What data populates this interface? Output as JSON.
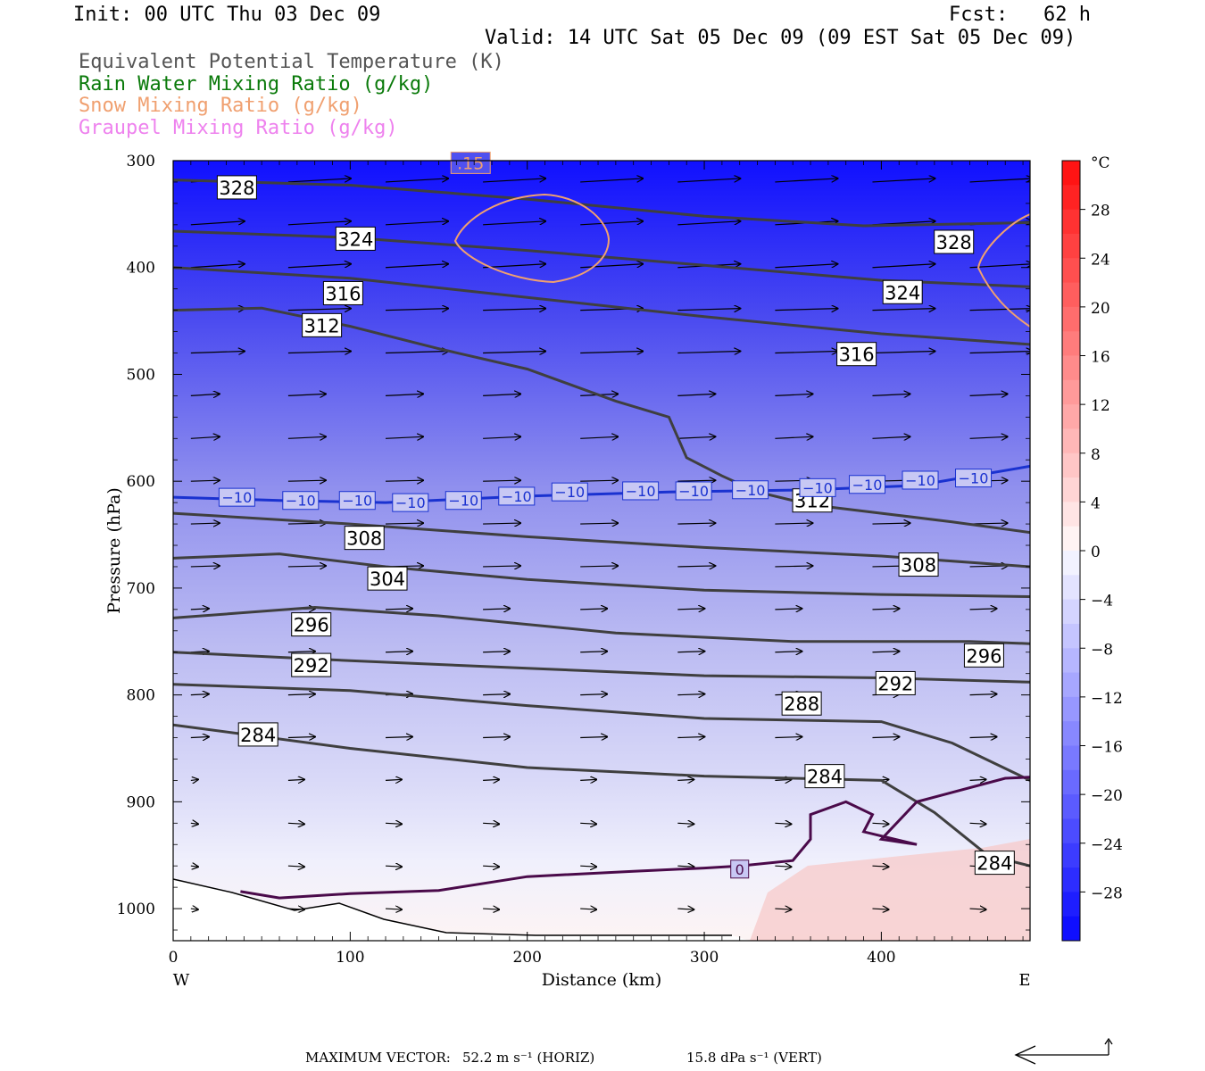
{
  "header": {
    "init": "Init: 00 UTC Thu 03 Dec 09",
    "fcst": "Fcst:   62 h",
    "valid": "Valid: 14 UTC Sat 05 Dec 09 (09 EST Sat 05 Dec 09)",
    "fields": [
      {
        "label": "Equivalent Potential Temperature (K)",
        "color": "#555555"
      },
      {
        "label": "Rain Water Mixing Ratio (g/kg)",
        "color": "#0a7a0a"
      },
      {
        "label": "Snow Mixing Ratio (g/kg)",
        "color": "#f0a070"
      },
      {
        "label": "Graupel Mixing Ratio (g/kg)",
        "color": "#ee82ee"
      }
    ]
  },
  "chart_data": {
    "type": "cross-section",
    "xlabel": "Distance (km)",
    "ylabel": "Pressure (hPa)",
    "x_ticks": [
      0,
      100,
      200,
      300,
      400
    ],
    "x_range": [
      0,
      484
    ],
    "y_ticks": [
      300,
      400,
      500,
      600,
      700,
      800,
      900,
      1000
    ],
    "y_range": [
      300,
      1030
    ],
    "x_end_labels": {
      "left": "W",
      "right": "E"
    },
    "colorbar": {
      "unit": "°C",
      "ticks": [
        "28",
        "24",
        "20",
        "16",
        "12",
        "8",
        "4",
        "0",
        "−4",
        "−8",
        "−12",
        "−16",
        "−20",
        "−24",
        "−28"
      ],
      "range": [
        -32,
        32
      ]
    },
    "theta_e_contours": [
      {
        "label": "328",
        "points": [
          [
            0,
            318
          ],
          [
            100,
            323
          ],
          [
            200,
            336
          ],
          [
            300,
            352
          ],
          [
            390,
            361
          ],
          [
            484,
            358
          ]
        ],
        "label_positions": [
          [
            36,
            325
          ],
          [
            441,
            376
          ]
        ]
      },
      {
        "label": "324",
        "points": [
          [
            0,
            366
          ],
          [
            100,
            372
          ],
          [
            200,
            384
          ],
          [
            300,
            398
          ],
          [
            400,
            412
          ],
          [
            484,
            418
          ]
        ],
        "label_positions": [
          [
            103,
            373
          ],
          [
            412,
            423
          ]
        ]
      },
      {
        "label": "316",
        "points": [
          [
            0,
            400
          ],
          [
            100,
            410
          ],
          [
            200,
            428
          ],
          [
            300,
            446
          ],
          [
            400,
            462
          ],
          [
            484,
            472
          ]
        ],
        "label_positions": [
          [
            96,
            424
          ],
          [
            386,
            481
          ]
        ]
      },
      {
        "label": "312",
        "points": [
          [
            0,
            440
          ],
          [
            50,
            438
          ],
          [
            100,
            455
          ],
          [
            150,
            476
          ],
          [
            200,
            495
          ],
          [
            250,
            525
          ],
          [
            280,
            540
          ],
          [
            290,
            578
          ],
          [
            310,
            595
          ],
          [
            330,
            610
          ],
          [
            360,
            622
          ],
          [
            400,
            630
          ],
          [
            440,
            638
          ],
          [
            484,
            648
          ]
        ],
        "label_positions": [
          [
            84,
            454
          ],
          [
            361,
            618
          ]
        ]
      },
      {
        "label": "308",
        "points": [
          [
            0,
            630
          ],
          [
            100,
            640
          ],
          [
            200,
            652
          ],
          [
            300,
            662
          ],
          [
            400,
            670
          ],
          [
            484,
            680
          ]
        ],
        "label_positions": [
          [
            108,
            653
          ],
          [
            421,
            678
          ]
        ]
      },
      {
        "label": "304",
        "points": [
          [
            0,
            672
          ],
          [
            60,
            668
          ],
          [
            120,
            680
          ],
          [
            200,
            692
          ],
          [
            300,
            702
          ],
          [
            400,
            706
          ],
          [
            484,
            708
          ]
        ],
        "label_positions": [
          [
            121,
            691
          ]
        ]
      },
      {
        "label": "296",
        "points": [
          [
            0,
            728
          ],
          [
            80,
            718
          ],
          [
            150,
            726
          ],
          [
            250,
            742
          ],
          [
            350,
            750
          ],
          [
            450,
            750
          ],
          [
            484,
            752
          ]
        ],
        "label_positions": [
          [
            78,
            734
          ],
          [
            458,
            763
          ]
        ]
      },
      {
        "label": "292",
        "points": [
          [
            0,
            760
          ],
          [
            100,
            768
          ],
          [
            200,
            775
          ],
          [
            300,
            782
          ],
          [
            400,
            784
          ],
          [
            484,
            788
          ]
        ],
        "label_positions": [
          [
            78,
            772
          ],
          [
            408,
            789
          ]
        ]
      },
      {
        "label": "288",
        "points": [
          [
            0,
            790
          ],
          [
            100,
            796
          ],
          [
            200,
            810
          ],
          [
            300,
            822
          ],
          [
            400,
            825
          ],
          [
            440,
            845
          ],
          [
            484,
            880
          ]
        ],
        "label_positions": [
          [
            355,
            808
          ]
        ]
      },
      {
        "label": "284",
        "points": [
          [
            0,
            828
          ],
          [
            100,
            850
          ],
          [
            200,
            868
          ],
          [
            300,
            876
          ],
          [
            400,
            880
          ],
          [
            430,
            910
          ],
          [
            460,
            950
          ],
          [
            484,
            960
          ]
        ],
        "label_positions": [
          [
            48,
            837
          ],
          [
            368,
            876
          ],
          [
            464,
            957
          ]
        ]
      }
    ],
    "temperature_contours": [
      {
        "label": "−10",
        "value_c": -10,
        "points": [
          [
            0,
            615
          ],
          [
            60,
            618
          ],
          [
            120,
            620
          ],
          [
            200,
            614
          ],
          [
            280,
            610
          ],
          [
            360,
            608
          ],
          [
            420,
            604
          ],
          [
            484,
            586
          ]
        ],
        "label_positions": [
          [
            36,
            615
          ],
          [
            72,
            618
          ],
          [
            104,
            618
          ],
          [
            134,
            620
          ],
          [
            164,
            618
          ],
          [
            194,
            614
          ],
          [
            224,
            610
          ],
          [
            264,
            609
          ],
          [
            294,
            609
          ],
          [
            326,
            608
          ],
          [
            364,
            606
          ],
          [
            392,
            603
          ],
          [
            422,
            599
          ],
          [
            452,
            597
          ]
        ]
      },
      {
        "label": "0",
        "value_c": 0,
        "points": [
          [
            38,
            984
          ],
          [
            60,
            990
          ],
          [
            100,
            986
          ],
          [
            150,
            983
          ],
          [
            200,
            970
          ],
          [
            260,
            965
          ],
          [
            300,
            962
          ],
          [
            320,
            960
          ],
          [
            350,
            955
          ],
          [
            360,
            935
          ],
          [
            360,
            912
          ],
          [
            380,
            900
          ],
          [
            395,
            912
          ],
          [
            390,
            928
          ],
          [
            420,
            940
          ],
          [
            400,
            935
          ],
          [
            420,
            900
          ],
          [
            470,
            878
          ],
          [
            484,
            877
          ]
        ],
        "label_positions": [
          [
            320,
            963
          ]
        ]
      }
    ],
    "snow_contour": {
      "label": ".15",
      "label_positions": [
        [
          168,
          302
        ]
      ]
    },
    "max_vector": {
      "horizontal": "52.2 m s⁻¹ (HORIZ)",
      "vertical": "15.8 dPa s⁻¹ (VERT)"
    }
  },
  "footer": {
    "prefix": "MAXIMUM VECTOR:",
    "horiz": "52.2 m s⁻¹ (HORIZ)",
    "vert": "15.8 dPa s⁻¹ (VERT)"
  }
}
